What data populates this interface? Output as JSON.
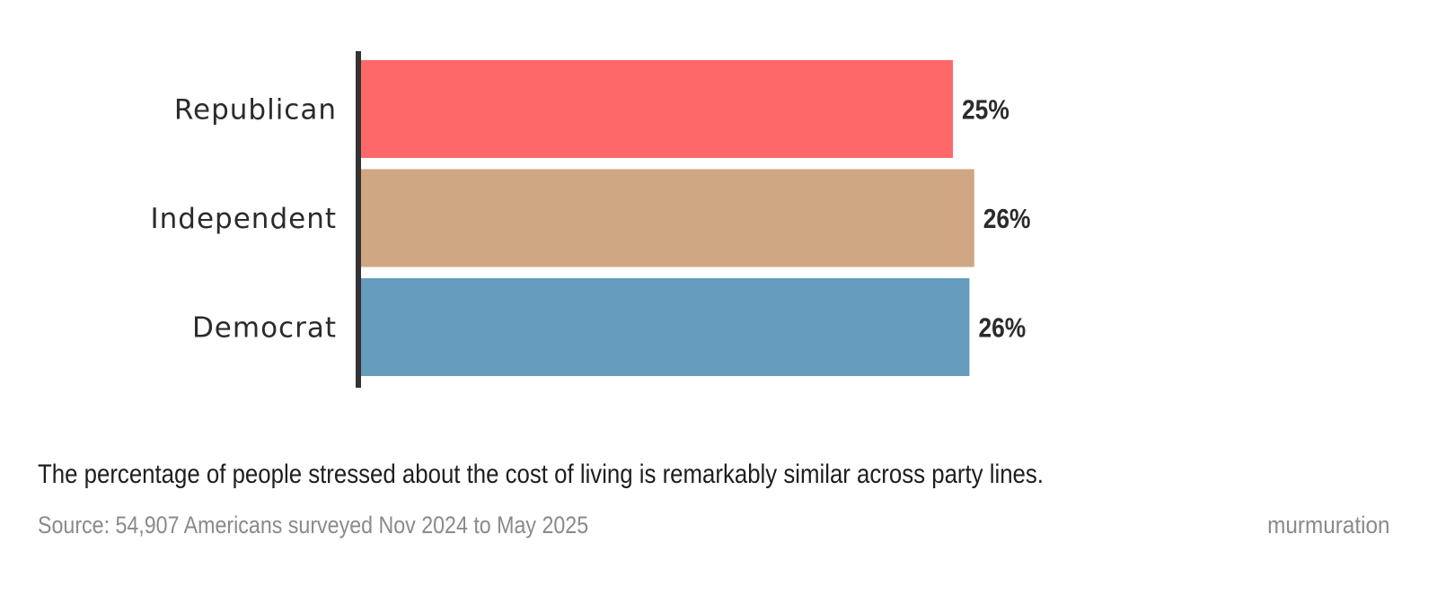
{
  "chart_data": {
    "type": "bar",
    "orientation": "horizontal",
    "categories": [
      "Republican",
      "Independent",
      "Democrat"
    ],
    "values": [
      25,
      26,
      26
    ],
    "value_labels": [
      "25%",
      "26%",
      "26%"
    ],
    "colors": [
      "#ff6868",
      "#cfa783",
      "#669cbe"
    ],
    "xlim": [
      0,
      26.2
    ],
    "grid": false,
    "legend": "none"
  },
  "caption": "The percentage of people stressed about the cost of living is remarkably similar across party lines.",
  "source": "Source: 54,907 Americans surveyed Nov 2024 to May 2025",
  "brand": "murmuration"
}
